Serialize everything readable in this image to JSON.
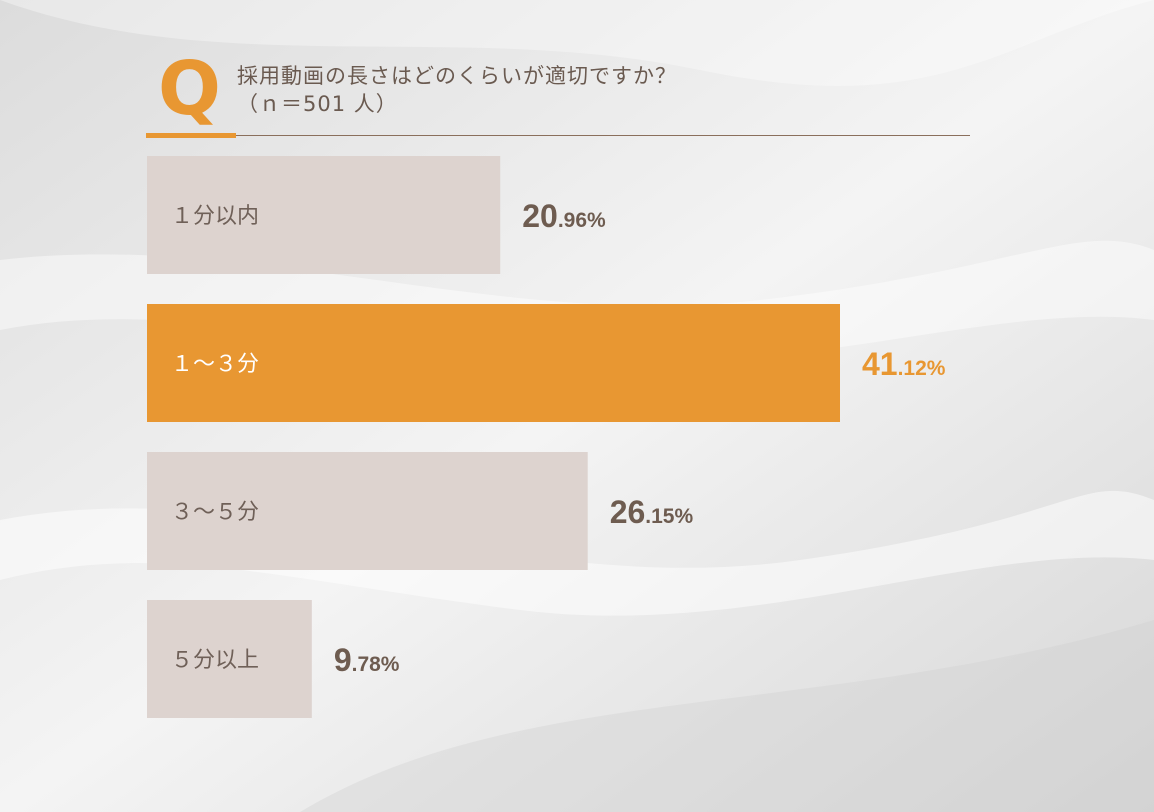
{
  "header": {
    "q_letter": "Q",
    "question": "採用動画の長さはどのくらいが適切ですか？",
    "sample": "（ｎ＝501 人）"
  },
  "colors": {
    "accent": "#e89732",
    "bar_default": "#ddd3cf",
    "label_default": "#6f6058",
    "value_default": "#6e5c50",
    "label_highlight": "#ffffff",
    "value_highlight": "#e89732"
  },
  "chart_data": {
    "type": "bar",
    "orientation": "horizontal",
    "title": "採用動画の長さはどのくらいが適切ですか？",
    "categories": [
      "１分以内",
      "１～３分",
      "３～５分",
      "５分以上"
    ],
    "series": [
      {
        "values": [
          20.96,
          41.12,
          26.15,
          9.78
        ],
        "value_labels": [
          {
            "int": "20",
            "dec": ".96%"
          },
          {
            "int": "41",
            "dec": ".12%"
          },
          {
            "int": "26",
            "dec": ".15%"
          },
          {
            "int": "9",
            "dec": ".78%"
          }
        ]
      }
    ],
    "highlight_index": 1,
    "unit": "%",
    "xlim": [
      0,
      100
    ],
    "grid": false,
    "legend": "none"
  }
}
